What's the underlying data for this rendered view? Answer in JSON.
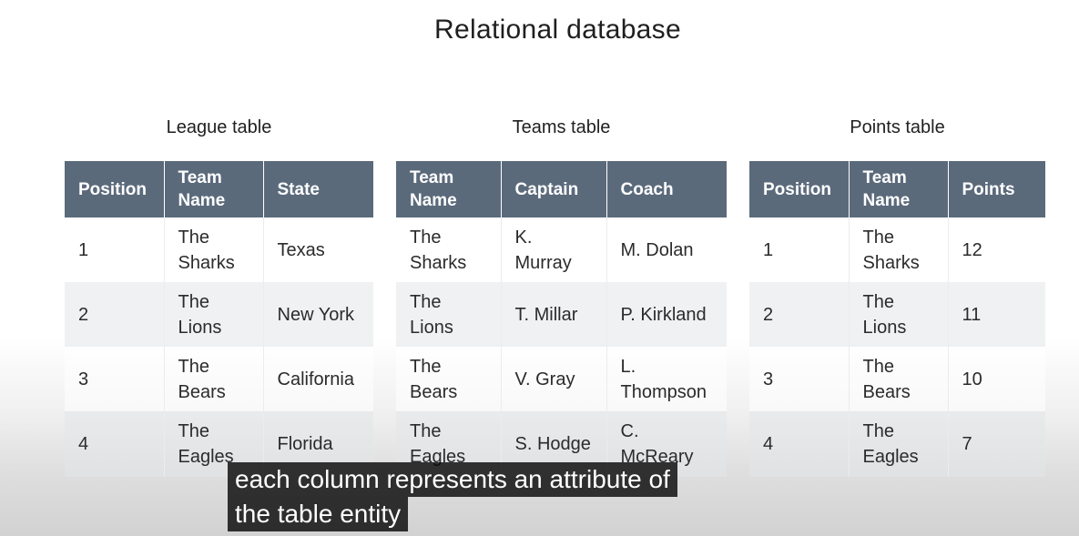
{
  "title": "Relational database",
  "tables": {
    "league": {
      "title": "League table",
      "headers": [
        "Position",
        "Team Name",
        "State"
      ],
      "rows": [
        [
          "1",
          "The Sharks",
          "Texas"
        ],
        [
          "2",
          "The Lions",
          "New York"
        ],
        [
          "3",
          "The Bears",
          "California"
        ],
        [
          "4",
          "The Eagles",
          "Florida"
        ]
      ]
    },
    "teams": {
      "title": "Teams table",
      "headers": [
        "Team Name",
        "Captain",
        "Coach"
      ],
      "rows": [
        [
          "The Sharks",
          "K. Murray",
          "M. Dolan"
        ],
        [
          "The Lions",
          "T. Millar",
          "P. Kirkland"
        ],
        [
          "The Bears",
          "V. Gray",
          "L. Thompson"
        ],
        [
          "The Eagles",
          "S. Hodge",
          "C. McReary"
        ]
      ]
    },
    "points": {
      "title": "Points table",
      "headers": [
        "Position",
        "Team Name",
        "Points"
      ],
      "rows": [
        [
          "1",
          "The Sharks",
          "12"
        ],
        [
          "2",
          "The Lions",
          "11"
        ],
        [
          "3",
          "The Bears",
          "10"
        ],
        [
          "4",
          "The Eagles",
          "7"
        ]
      ]
    }
  },
  "caption": {
    "line1": "each column represents an attribute of",
    "line2": "the table entity"
  }
}
